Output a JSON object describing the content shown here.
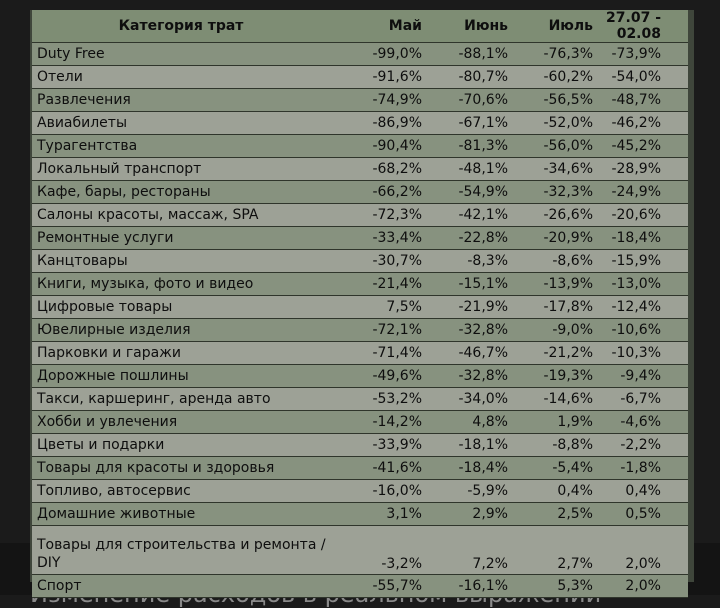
{
  "table": {
    "headers": [
      "Категория трат",
      "Май",
      "Июнь",
      "Июль",
      "27.07 - 02.08"
    ],
    "rows": [
      [
        "Duty Free",
        "-99,0%",
        "-88,1%",
        "-76,3%",
        "-73,9%"
      ],
      [
        "Отели",
        "-91,6%",
        "-80,7%",
        "-60,2%",
        "-54,0%"
      ],
      [
        "Развлечения",
        "-74,9%",
        "-70,6%",
        "-56,5%",
        "-48,7%"
      ],
      [
        "Авиабилеты",
        "-86,9%",
        "-67,1%",
        "-52,0%",
        "-46,2%"
      ],
      [
        "Турагентства",
        "-90,4%",
        "-81,3%",
        "-56,0%",
        "-45,2%"
      ],
      [
        "Локальный транспорт",
        "-68,2%",
        "-48,1%",
        "-34,6%",
        "-28,9%"
      ],
      [
        "Кафе, бары, рестораны",
        "-66,2%",
        "-54,9%",
        "-32,3%",
        "-24,9%"
      ],
      [
        "Салоны красоты, массаж, SPA",
        "-72,3%",
        "-42,1%",
        "-26,6%",
        "-20,6%"
      ],
      [
        "Ремонтные услуги",
        "-33,4%",
        "-22,8%",
        "-20,9%",
        "-18,4%"
      ],
      [
        "Канцтовары",
        "-30,7%",
        "-8,3%",
        "-8,6%",
        "-15,9%"
      ],
      [
        "Книги, музыка, фото и видео",
        "-21,4%",
        "-15,1%",
        "-13,9%",
        "-13,0%"
      ],
      [
        "Цифровые товары",
        "7,5%",
        "-21,9%",
        "-17,8%",
        "-12,4%"
      ],
      [
        "Ювелирные изделия",
        "-72,1%",
        "-32,8%",
        "-9,0%",
        "-10,6%"
      ],
      [
        "Парковки и гаражи",
        "-71,4%",
        "-46,7%",
        "-21,2%",
        "-10,3%"
      ],
      [
        "Дорожные пошлины",
        "-49,6%",
        "-32,8%",
        "-19,3%",
        "-9,4%"
      ],
      [
        "Такси, каршеринг, аренда авто",
        "-53,2%",
        "-34,0%",
        "-14,6%",
        "-6,7%"
      ],
      [
        "Хобби и увлечения",
        "-14,2%",
        "4,8%",
        "1,9%",
        "-4,6%"
      ],
      [
        "Цветы и подарки",
        "-33,9%",
        "-18,1%",
        "-8,8%",
        "-2,2%"
      ],
      [
        "Товары для красоты и здоровья",
        "-41,6%",
        "-18,4%",
        "-5,4%",
        "-1,8%"
      ],
      [
        "Топливо, автосервис",
        "-16,0%",
        "-5,9%",
        "0,4%",
        "0,4%"
      ],
      [
        "Домашние животные",
        "3,1%",
        "2,9%",
        "2,5%",
        "0,5%"
      ],
      [
        "Товары для строительства и ремонта / DIY",
        "-3,2%",
        "7,2%",
        "2,7%",
        "2,0%"
      ],
      [
        "Спорт",
        "-55,7%",
        "-16,1%",
        "5,3%",
        "2,0%"
      ]
    ]
  },
  "caption": "Изменение расходов в реальном выражении"
}
